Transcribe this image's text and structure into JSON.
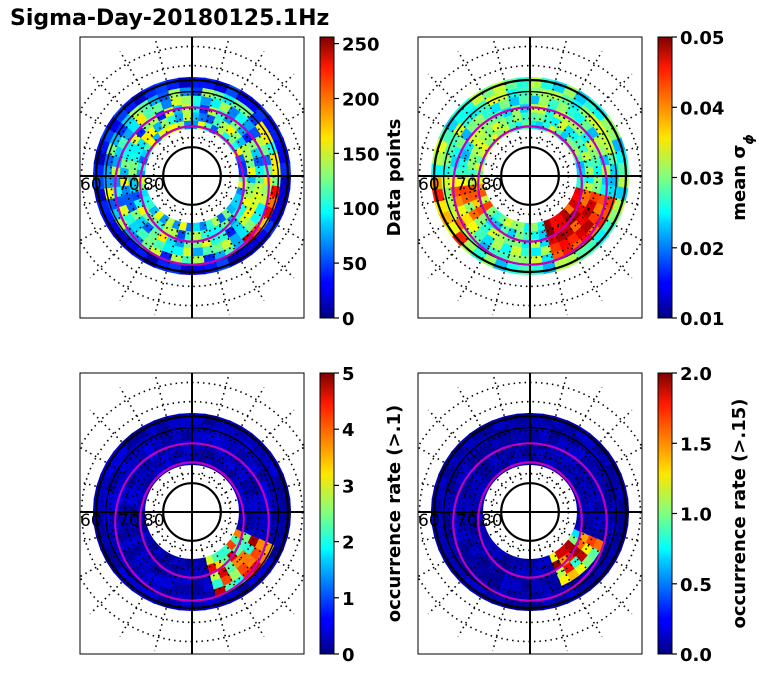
{
  "figure": {
    "title": "Sigma-Day-20180125.1Hz"
  },
  "chart_data": [
    {
      "type": "heatmap",
      "projection": "polar",
      "lat_ring_labels": [
        "60",
        "70",
        "80"
      ],
      "colormap": "jet",
      "colorbar": {
        "label": "Data points",
        "range": [
          0,
          256
        ],
        "ticks": [
          "0",
          "50",
          "100",
          "150",
          "200",
          "250"
        ],
        "tick_values": [
          0,
          50,
          100,
          150,
          200,
          250
        ]
      }
    },
    {
      "type": "heatmap",
      "projection": "polar",
      "lat_ring_labels": [
        "60",
        "70",
        "80"
      ],
      "colormap": "jet",
      "colorbar": {
        "label": "mean σ",
        "label_subscript": "ϕ",
        "range": [
          0.01,
          0.05
        ],
        "ticks": [
          "0.01",
          "0.02",
          "0.03",
          "0.04",
          "0.05"
        ],
        "tick_values": [
          0.01,
          0.02,
          0.03,
          0.04,
          0.05
        ]
      }
    },
    {
      "type": "heatmap",
      "projection": "polar",
      "lat_ring_labels": [
        "60",
        "70",
        "80"
      ],
      "colormap": "jet",
      "colorbar": {
        "label": "occurrence rate (>.1)",
        "range": [
          0,
          5
        ],
        "ticks": [
          "0",
          "1",
          "2",
          "3",
          "4",
          "5"
        ],
        "tick_values": [
          0,
          1,
          2,
          3,
          4,
          5
        ]
      }
    },
    {
      "type": "heatmap",
      "projection": "polar",
      "lat_ring_labels": [
        "60",
        "70",
        "80"
      ],
      "colormap": "jet",
      "colorbar": {
        "label": "occurrence rate (>.15)",
        "range": [
          0,
          2
        ],
        "ticks": [
          "0.0",
          "0.5",
          "1.0",
          "1.5",
          "2.0"
        ],
        "tick_values": [
          0,
          0.5,
          1,
          1.5,
          2
        ]
      }
    }
  ]
}
